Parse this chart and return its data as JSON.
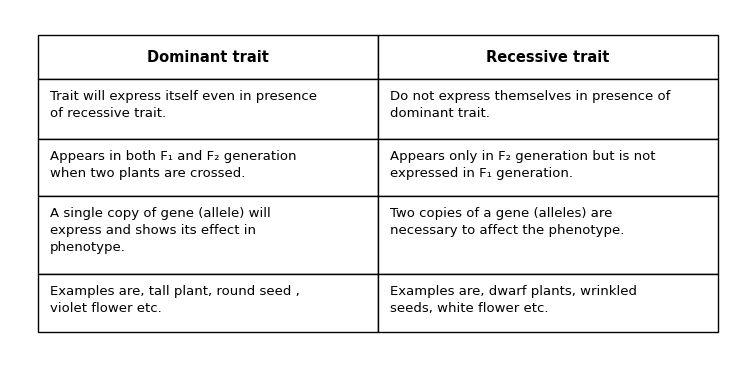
{
  "col_headers": [
    "Dominant trait",
    "Recessive trait"
  ],
  "rows": [
    [
      "Trait will express itself even in presence\nof recessive trait.",
      "Do not express themselves in presence of\ndominant trait."
    ],
    [
      "Appears in both F₁ and F₂ generation\nwhen two plants are crossed.",
      "Appears only in F₂ generation but is not\nexpressed in F₁ generation."
    ],
    [
      "A single copy of gene (allele) will\nexpress and shows its effect in\nphenotype.",
      "Two copies of a gene (alleles) are\nnecessary to affect the phenotype."
    ],
    [
      "Examples are, tall plant, round seed ,\nviolet flower etc.",
      "Examples are, dwarf plants, wrinkled\nseeds, white flower etc."
    ]
  ],
  "bg_color": "#ffffff",
  "border_color": "#000000",
  "text_color": "#000000",
  "header_fontsize": 10.5,
  "cell_fontsize": 9.5,
  "fig_width": 7.53,
  "fig_height": 3.7
}
